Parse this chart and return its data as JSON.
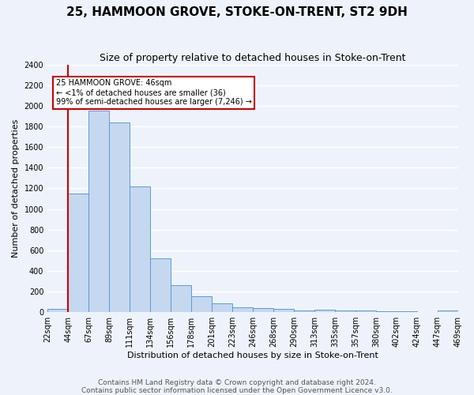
{
  "title": "25, HAMMOON GROVE, STOKE-ON-TRENT, ST2 9DH",
  "subtitle": "Size of property relative to detached houses in Stoke-on-Trent",
  "xlabel": "Distribution of detached houses by size in Stoke-on-Trent",
  "ylabel": "Number of detached properties",
  "bar_values": [
    30,
    1150,
    1950,
    1840,
    1220,
    520,
    265,
    155,
    85,
    47,
    40,
    35,
    20,
    25,
    20,
    15,
    10,
    10,
    5,
    20
  ],
  "bar_labels": [
    "22sqm",
    "44sqm",
    "67sqm",
    "89sqm",
    "111sqm",
    "134sqm",
    "156sqm",
    "178sqm",
    "201sqm",
    "223sqm",
    "246sqm",
    "268sqm",
    "290sqm",
    "313sqm",
    "335sqm",
    "357sqm",
    "380sqm",
    "402sqm",
    "424sqm",
    "447sqm",
    "469sqm"
  ],
  "bar_color": "#c5d8f0",
  "bar_edge_color": "#5b9bd5",
  "vline_color": "#cc0000",
  "annotation_text": "25 HAMMOON GROVE: 46sqm\n← <1% of detached houses are smaller (36)\n99% of semi-detached houses are larger (7,246) →",
  "annotation_box_color": "#ffffff",
  "annotation_box_edge": "#cc0000",
  "ylim": [
    0,
    2400
  ],
  "yticks": [
    0,
    200,
    400,
    600,
    800,
    1000,
    1200,
    1400,
    1600,
    1800,
    2000,
    2200,
    2400
  ],
  "footer_line1": "Contains HM Land Registry data © Crown copyright and database right 2024.",
  "footer_line2": "Contains public sector information licensed under the Open Government Licence v3.0.",
  "background_color": "#eef3fb",
  "grid_color": "#ffffff",
  "title_fontsize": 11,
  "subtitle_fontsize": 9,
  "xlabel_fontsize": 8,
  "ylabel_fontsize": 8,
  "tick_fontsize": 7,
  "footer_fontsize": 6.5
}
